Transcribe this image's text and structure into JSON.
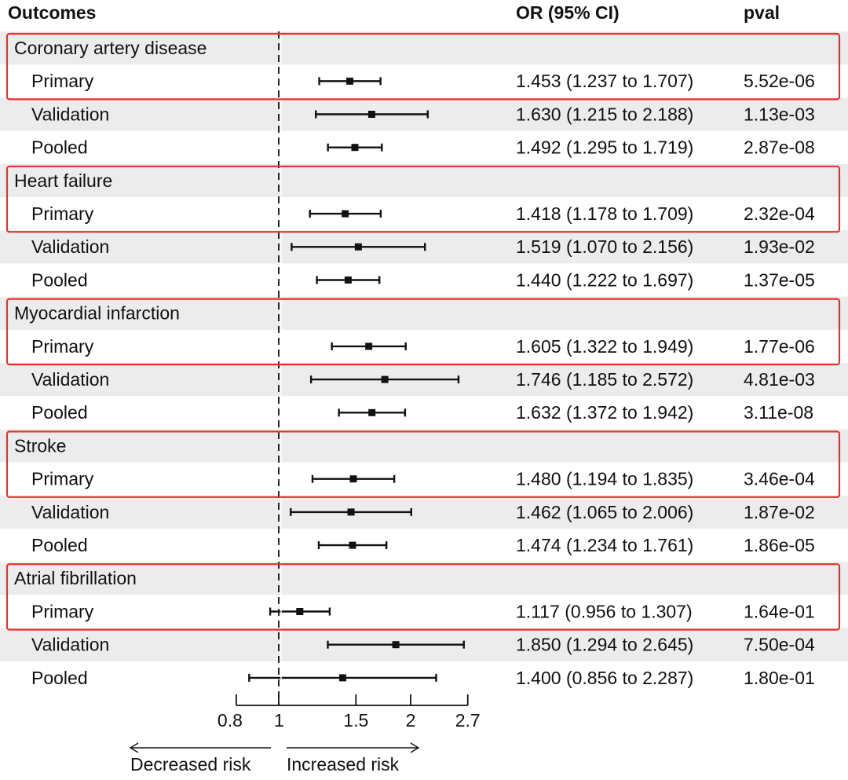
{
  "chart_data": {
    "type": "forest",
    "axis_scale": "log",
    "reference_line": 1,
    "x_ticks": [
      0.8,
      1,
      1.5,
      2,
      2.7
    ],
    "xlim": [
      0.8,
      2.7
    ],
    "headers": {
      "outcomes": "Outcomes",
      "or_ci": "OR (95% CI)",
      "pval": "pval"
    },
    "direction_labels": {
      "left": "Decreased risk",
      "right": "Increased risk"
    },
    "groups": [
      {
        "name": "Coronary artery disease",
        "rows": [
          {
            "label": "Primary",
            "or": 1.453,
            "lo": 1.237,
            "hi": 1.707,
            "ci_text": "1.453 (1.237 to 1.707)",
            "pval": "5.52e-06"
          },
          {
            "label": "Validation",
            "or": 1.63,
            "lo": 1.215,
            "hi": 2.188,
            "ci_text": "1.630 (1.215 to 2.188)",
            "pval": "1.13e-03"
          },
          {
            "label": "Pooled",
            "or": 1.492,
            "lo": 1.295,
            "hi": 1.719,
            "ci_text": "1.492 (1.295 to 1.719)",
            "pval": "2.87e-08"
          }
        ]
      },
      {
        "name": "Heart failure",
        "rows": [
          {
            "label": "Primary",
            "or": 1.418,
            "lo": 1.178,
            "hi": 1.709,
            "ci_text": "1.418 (1.178 to 1.709)",
            "pval": "2.32e-04"
          },
          {
            "label": "Validation",
            "or": 1.519,
            "lo": 1.07,
            "hi": 2.156,
            "ci_text": "1.519 (1.070 to 2.156)",
            "pval": "1.93e-02"
          },
          {
            "label": "Pooled",
            "or": 1.44,
            "lo": 1.222,
            "hi": 1.697,
            "ci_text": "1.440 (1.222 to 1.697)",
            "pval": "1.37e-05"
          }
        ]
      },
      {
        "name": "Myocardial infarction",
        "rows": [
          {
            "label": "Primary",
            "or": 1.605,
            "lo": 1.322,
            "hi": 1.949,
            "ci_text": "1.605 (1.322 to 1.949)",
            "pval": "1.77e-06"
          },
          {
            "label": "Validation",
            "or": 1.746,
            "lo": 1.185,
            "hi": 2.572,
            "ci_text": "1.746 (1.185 to 2.572)",
            "pval": "4.81e-03"
          },
          {
            "label": "Pooled",
            "or": 1.632,
            "lo": 1.372,
            "hi": 1.942,
            "ci_text": "1.632 (1.372 to 1.942)",
            "pval": "3.11e-08"
          }
        ]
      },
      {
        "name": "Stroke",
        "rows": [
          {
            "label": "Primary",
            "or": 1.48,
            "lo": 1.194,
            "hi": 1.835,
            "ci_text": "1.480 (1.194 to 1.835)",
            "pval": "3.46e-04"
          },
          {
            "label": "Validation",
            "or": 1.462,
            "lo": 1.065,
            "hi": 2.006,
            "ci_text": "1.462 (1.065 to 2.006)",
            "pval": "1.87e-02"
          },
          {
            "label": "Pooled",
            "or": 1.474,
            "lo": 1.234,
            "hi": 1.761,
            "ci_text": "1.474 (1.234 to 1.761)",
            "pval": "1.86e-05"
          }
        ]
      },
      {
        "name": "Atrial fibrillation",
        "rows": [
          {
            "label": "Primary",
            "or": 1.117,
            "lo": 0.956,
            "hi": 1.307,
            "ci_text": "1.117 (0.956 to 1.307)",
            "pval": "1.64e-01"
          },
          {
            "label": "Validation",
            "or": 1.85,
            "lo": 1.294,
            "hi": 2.645,
            "ci_text": "1.850 (1.294 to 2.645)",
            "pval": "7.50e-04"
          },
          {
            "label": "Pooled",
            "or": 1.4,
            "lo": 0.856,
            "hi": 2.287,
            "ci_text": "1.400 (0.856 to 2.287)",
            "pval": "1.80e-01"
          }
        ]
      }
    ],
    "colors": {
      "band": "#ececec",
      "highlight_box": "#e8302a",
      "ink": "#111111"
    }
  }
}
